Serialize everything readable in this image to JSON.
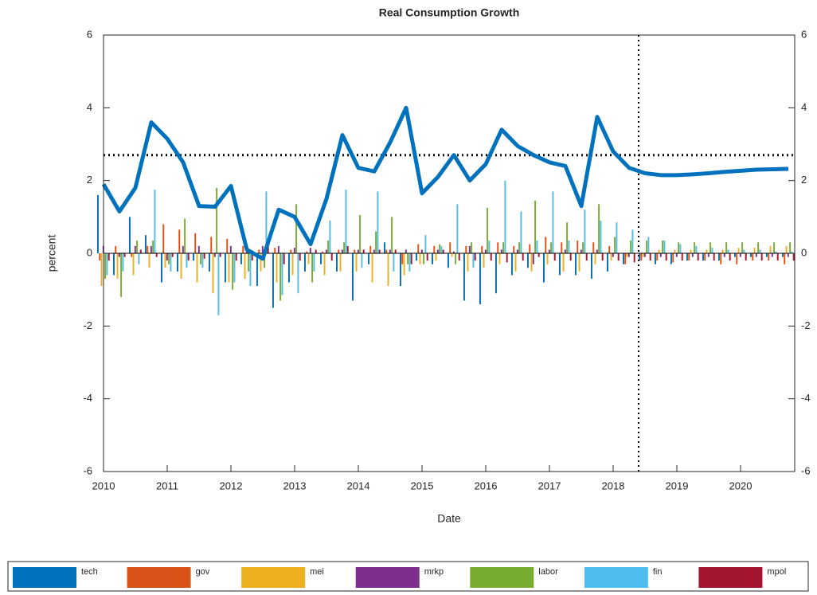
{
  "chart_data": {
    "type": "bar",
    "title": "Real Consumption Growth",
    "xlabel": "Date",
    "ylabel": "percent",
    "x": [
      2010,
      2010.25,
      2010.5,
      2010.75,
      2011,
      2011.25,
      2011.5,
      2011.75,
      2012,
      2012.25,
      2012.5,
      2012.75,
      2013,
      2013.25,
      2013.5,
      2013.75,
      2014,
      2014.25,
      2014.5,
      2014.75,
      2015,
      2015.25,
      2015.5,
      2015.75,
      2016,
      2016.25,
      2016.5,
      2016.75,
      2017,
      2017.25,
      2017.5,
      2017.75,
      2018,
      2018.25,
      2018.5,
      2018.75,
      2019,
      2019.25,
      2019.5,
      2019.75,
      2020,
      2020.25,
      2020.5,
      2020.75
    ],
    "series": [
      {
        "name": "tech",
        "color": "#0072BD",
        "values": [
          1.6,
          -0.6,
          1.0,
          0.5,
          -0.8,
          -0.5,
          -0.2,
          -0.5,
          -0.8,
          -0.3,
          -0.9,
          -1.5,
          -0.8,
          -0.5,
          -0.3,
          -0.5,
          -1.3,
          -0.3,
          0.3,
          -0.9,
          -0.2,
          -0.3,
          -0.4,
          -1.3,
          -1.4,
          -1.1,
          -0.6,
          -0.4,
          -0.8,
          -0.6,
          -0.6,
          -0.7,
          -0.5,
          -0.3,
          -0.2,
          -0.3,
          -0.3,
          -0.2,
          -0.2,
          -0.2,
          -0.1,
          -0.1,
          -0.1,
          -0.1
        ]
      },
      {
        "name": "gov",
        "color": "#D95319",
        "values": [
          -0.2,
          0.2,
          -0.1,
          0.2,
          0.8,
          0.65,
          0.55,
          0.45,
          0.4,
          0.2,
          0.1,
          0.15,
          0.1,
          0.05,
          0.05,
          0.1,
          0.1,
          0.2,
          0.1,
          -0.3,
          0.25,
          0.2,
          0.3,
          0.2,
          0.2,
          0.3,
          0.2,
          0.25,
          0.45,
          0.3,
          0.35,
          0.3,
          0.2,
          -0.3,
          -0.2,
          -0.2,
          -0.25,
          -0.2,
          -0.2,
          -0.3,
          -0.3,
          -0.2,
          -0.2,
          -0.3
        ]
      },
      {
        "name": "mei",
        "color": "#EDB120",
        "values": [
          -0.9,
          -0.7,
          -0.6,
          -0.4,
          -0.4,
          -0.7,
          -0.8,
          -1.1,
          -0.8,
          -0.7,
          -0.5,
          -0.8,
          -0.6,
          -0.3,
          -0.6,
          -0.5,
          -0.5,
          -0.8,
          -0.9,
          -0.6,
          -0.3,
          -0.2,
          -0.1,
          -0.5,
          -0.4,
          -0.3,
          -0.5,
          -0.5,
          -0.3,
          -0.5,
          -0.5,
          -0.3,
          -0.2,
          -0.1,
          -0.1,
          0.1,
          0.1,
          0.1,
          0.1,
          0.1,
          0.15,
          0.15,
          0.2,
          0.2
        ]
      },
      {
        "name": "mrkp",
        "color": "#7E2F8E",
        "values": [
          0.2,
          -0.1,
          0.2,
          0.2,
          -0.2,
          0.2,
          0.2,
          -0.1,
          0.2,
          0.1,
          0.2,
          0.2,
          0.15,
          0.15,
          0.1,
          0.1,
          0.1,
          0.1,
          0.1,
          0.1,
          0.1,
          0.1,
          0.05,
          0.2,
          0.1,
          0.1,
          0.1,
          -0.3,
          0.1,
          0.1,
          0.1,
          0.1,
          -0.1,
          -0.1,
          -0.1,
          -0.1,
          -0.1,
          -0.1,
          -0.1,
          -0.1,
          -0.1,
          -0.1,
          -0.1,
          -0.1
        ]
      },
      {
        "name": "labor",
        "color": "#77AC30",
        "values": [
          -0.7,
          -1.2,
          0.35,
          0.35,
          -0.3,
          0.95,
          -0.3,
          1.8,
          -1.0,
          -0.5,
          -0.4,
          -1.3,
          1.35,
          -0.8,
          0.35,
          0.3,
          1.05,
          0.6,
          1.0,
          -0.3,
          -0.3,
          0.25,
          -0.3,
          0.3,
          1.25,
          0.3,
          0.3,
          1.45,
          0.3,
          0.85,
          0.3,
          1.35,
          0.45,
          0.35,
          0.35,
          0.35,
          0.3,
          0.3,
          0.3,
          0.3,
          0.3,
          0.3,
          0.3,
          0.3
        ]
      },
      {
        "name": "fin",
        "color": "#4DBEEE",
        "values": [
          -0.6,
          -0.5,
          -0.3,
          1.75,
          -0.5,
          -0.4,
          -0.4,
          -1.7,
          -0.8,
          -0.9,
          1.7,
          -1.15,
          -1.1,
          -0.5,
          0.9,
          1.75,
          -0.4,
          1.7,
          -0.5,
          -0.5,
          0.5,
          0.2,
          1.35,
          -0.4,
          0.35,
          2.0,
          1.15,
          0.35,
          1.7,
          0.35,
          1.2,
          0.9,
          0.85,
          0.65,
          0.45,
          0.35,
          0.25,
          0.2,
          0.15,
          0.1,
          0.1,
          0.1,
          0.05,
          0.05
        ]
      },
      {
        "name": "mpol",
        "color": "#A2142F",
        "values": [
          -0.2,
          -0.1,
          0.1,
          -0.1,
          -0.1,
          -0.2,
          -0.15,
          -0.1,
          -0.2,
          -0.2,
          0.2,
          -0.3,
          -0.2,
          0.1,
          -0.2,
          0.2,
          0.1,
          0.1,
          0.1,
          -0.3,
          -0.2,
          0.1,
          -0.2,
          -0.2,
          -0.2,
          -0.25,
          -0.2,
          -0.1,
          -0.2,
          -0.2,
          -0.2,
          -0.2,
          -0.2,
          -0.25,
          -0.2,
          -0.2,
          -0.2,
          -0.2,
          -0.2,
          -0.2,
          -0.2,
          -0.2,
          -0.2,
          -0.2
        ]
      }
    ],
    "line": {
      "color": "#0072BD",
      "values": [
        1.9,
        1.15,
        1.8,
        3.6,
        3.15,
        2.5,
        1.3,
        1.28,
        1.85,
        0.1,
        -0.15,
        1.2,
        1.0,
        0.25,
        1.5,
        3.25,
        2.35,
        2.25,
        3.05,
        4.0,
        1.65,
        2.1,
        2.7,
        2.0,
        2.45,
        3.4,
        2.95,
        2.7,
        2.5,
        2.4,
        1.3,
        3.75,
        2.8,
        2.35,
        2.2,
        2.15,
        2.15,
        2.17,
        2.2,
        2.24,
        2.27,
        2.3,
        2.31,
        2.32
      ]
    },
    "reference_lines": {
      "y": 2.7,
      "x": 2018.4
    },
    "xlim": [
      2010,
      2020.85
    ],
    "xticks": [
      2010,
      2011,
      2012,
      2013,
      2014,
      2015,
      2016,
      2017,
      2018,
      2019,
      2020
    ],
    "ylim": [
      -6,
      6
    ],
    "yticks": [
      -6,
      -4,
      -2,
      0,
      2,
      4,
      6
    ],
    "y2lim": [
      -6,
      6
    ],
    "y2ticks": [
      -6,
      -4,
      -2,
      0,
      2,
      4,
      6
    ],
    "legend": "bottom"
  }
}
